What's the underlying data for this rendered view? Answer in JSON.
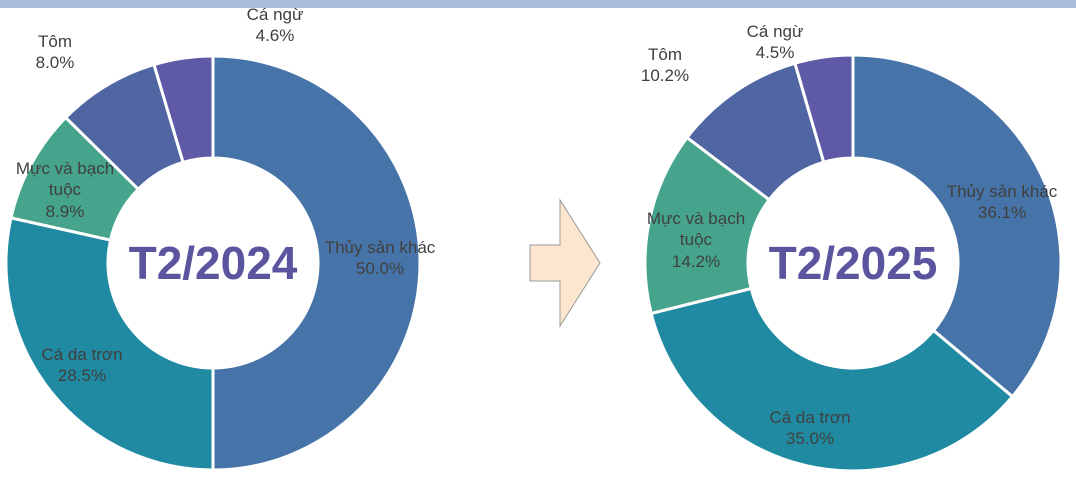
{
  "chart_data": [
    {
      "type": "donut",
      "center_label": "T2/2024",
      "categories": [
        "Thủy sản khác",
        "Cá da trơn",
        "Mực và bạch tuộc",
        "Tôm",
        "Cá ngừ"
      ],
      "values": [
        50,
        28.5,
        8.9,
        8,
        4.6
      ],
      "value_labels": [
        "50.0%",
        "28.5%",
        "8.9%",
        "8.0%",
        "4.6%"
      ],
      "colors": [
        "#4674a8",
        "#1f8aa1",
        "#45a48b",
        "#4f66a2",
        "#5f5aa8"
      ]
    },
    {
      "type": "donut",
      "center_label": "T2/2025",
      "categories": [
        "Thủy sản khác",
        "Cá da trơn",
        "Mực và bạch tuộc",
        "Tôm",
        "Cá ngừ"
      ],
      "values": [
        36.1,
        35,
        14.2,
        10.2,
        4.5
      ],
      "value_labels": [
        "36.1%",
        "35.0%",
        "14.2%",
        "10.2%",
        "4.5%"
      ],
      "colors": [
        "#4674a8",
        "#1f8aa1",
        "#45a48b",
        "#4f66a2",
        "#5f5aa8"
      ]
    }
  ]
}
